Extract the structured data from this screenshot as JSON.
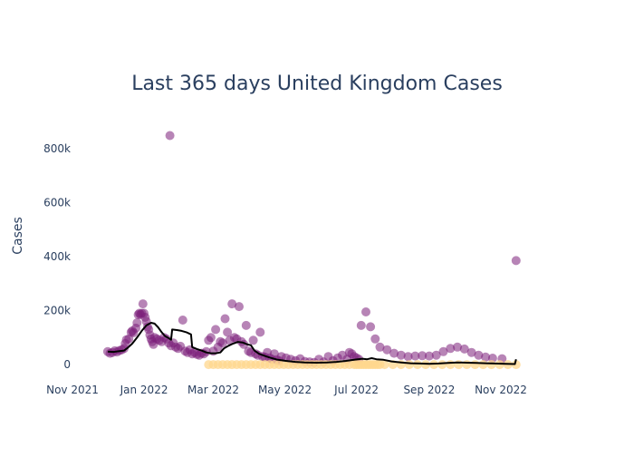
{
  "chart_data": {
    "type": "scatter",
    "title": "Last 365 days United Kingdom Cases",
    "xlabel": "",
    "ylabel": "Cases",
    "x_range": [
      "2021-11-01",
      "2022-12-15"
    ],
    "ylim": [
      -60000,
      880000
    ],
    "grid": false,
    "legend": "none",
    "x_ticks": [
      {
        "date": "2021-11-01",
        "label": "Nov 2021"
      },
      {
        "date": "2022-01-01",
        "label": "Jan 2022"
      },
      {
        "date": "2022-03-01",
        "label": "Mar 2022"
      },
      {
        "date": "2022-05-01",
        "label": "May 2022"
      },
      {
        "date": "2022-07-01",
        "label": "Jul 2022"
      },
      {
        "date": "2022-09-01",
        "label": "Sep 2022"
      },
      {
        "date": "2022-11-01",
        "label": "Nov 2022"
      }
    ],
    "y_ticks": [
      {
        "value": 0,
        "label": "0"
      },
      {
        "value": 200000,
        "label": "200k"
      },
      {
        "value": 400000,
        "label": "400k"
      },
      {
        "value": 600000,
        "label": "600k"
      },
      {
        "value": 800000,
        "label": "800k"
      }
    ],
    "series": [
      {
        "kind": "markers",
        "color": "#7b1f7a",
        "opacity": 0.55,
        "points": [
          [
            "2021-12-01",
            48000
          ],
          [
            "2021-12-03",
            42000
          ],
          [
            "2021-12-05",
            45000
          ],
          [
            "2021-12-07",
            51000
          ],
          [
            "2021-12-09",
            47000
          ],
          [
            "2021-12-11",
            52000
          ],
          [
            "2021-12-13",
            55000
          ],
          [
            "2021-12-15",
            60000
          ],
          [
            "2021-12-16",
            78000
          ],
          [
            "2021-12-17",
            92000
          ],
          [
            "2021-12-19",
            95000
          ],
          [
            "2021-12-21",
            120000
          ],
          [
            "2021-12-22",
            125000
          ],
          [
            "2021-12-23",
            118000
          ],
          [
            "2021-12-25",
            135000
          ],
          [
            "2021-12-26",
            155000
          ],
          [
            "2021-12-27",
            185000
          ],
          [
            "2021-12-28",
            190000
          ],
          [
            "2021-12-29",
            185000
          ],
          [
            "2021-12-30",
            190000
          ],
          [
            "2021-12-31",
            225000
          ],
          [
            "2022-01-01",
            190000
          ],
          [
            "2022-01-02",
            175000
          ],
          [
            "2022-01-03",
            160000
          ],
          [
            "2022-01-04",
            140000
          ],
          [
            "2022-01-05",
            130000
          ],
          [
            "2022-01-06",
            110000
          ],
          [
            "2022-01-07",
            95000
          ],
          [
            "2022-01-08",
            85000
          ],
          [
            "2022-01-09",
            75000
          ],
          [
            "2022-01-10",
            100000
          ],
          [
            "2022-01-12",
            95000
          ],
          [
            "2022-01-14",
            90000
          ],
          [
            "2022-01-16",
            85000
          ],
          [
            "2022-01-18",
            100000
          ],
          [
            "2022-01-20",
            95000
          ],
          [
            "2022-01-22",
            80000
          ],
          [
            "2022-01-24",
            70000
          ],
          [
            "2022-01-26",
            80000
          ],
          [
            "2022-01-28",
            65000
          ],
          [
            "2022-01-30",
            60000
          ],
          [
            "2022-01-23",
            848000
          ],
          [
            "2022-02-01",
            68000
          ],
          [
            "2022-02-03",
            165000
          ],
          [
            "2022-02-05",
            50000
          ],
          [
            "2022-02-07",
            45000
          ],
          [
            "2022-02-09",
            55000
          ],
          [
            "2022-02-11",
            40000
          ],
          [
            "2022-02-13",
            45000
          ],
          [
            "2022-02-15",
            38000
          ],
          [
            "2022-02-17",
            35000
          ],
          [
            "2022-02-19",
            42000
          ],
          [
            "2022-02-21",
            40000
          ],
          [
            "2022-02-23",
            48000
          ],
          [
            "2022-02-25",
            90000
          ],
          [
            "2022-02-27",
            100000
          ],
          [
            "2022-03-01",
            50000
          ],
          [
            "2022-03-03",
            130000
          ],
          [
            "2022-03-05",
            65000
          ],
          [
            "2022-03-07",
            85000
          ],
          [
            "2022-03-09",
            80000
          ],
          [
            "2022-03-11",
            170000
          ],
          [
            "2022-03-13",
            120000
          ],
          [
            "2022-03-15",
            90000
          ],
          [
            "2022-03-17",
            225000
          ],
          [
            "2022-03-19",
            100000
          ],
          [
            "2022-03-21",
            95000
          ],
          [
            "2022-03-23",
            215000
          ],
          [
            "2022-03-25",
            85000
          ],
          [
            "2022-03-27",
            75000
          ],
          [
            "2022-03-29",
            145000
          ],
          [
            "2022-03-31",
            50000
          ],
          [
            "2022-04-02",
            45000
          ],
          [
            "2022-04-04",
            90000
          ],
          [
            "2022-04-06",
            40000
          ],
          [
            "2022-04-08",
            35000
          ],
          [
            "2022-04-10",
            120000
          ],
          [
            "2022-04-12",
            30000
          ],
          [
            "2022-04-14",
            28000
          ],
          [
            "2022-04-16",
            45000
          ],
          [
            "2022-04-18",
            25000
          ],
          [
            "2022-04-20",
            20000
          ],
          [
            "2022-04-22",
            40000
          ],
          [
            "2022-04-24",
            18000
          ],
          [
            "2022-04-26",
            15000
          ],
          [
            "2022-04-28",
            30000
          ],
          [
            "2022-05-02",
            25000
          ],
          [
            "2022-05-06",
            20000
          ],
          [
            "2022-05-10",
            15000
          ],
          [
            "2022-05-14",
            22000
          ],
          [
            "2022-05-18",
            12000
          ],
          [
            "2022-05-22",
            10000
          ],
          [
            "2022-05-26",
            8000
          ],
          [
            "2022-05-30",
            20000
          ],
          [
            "2022-06-03",
            10000
          ],
          [
            "2022-06-07",
            30000
          ],
          [
            "2022-06-11",
            15000
          ],
          [
            "2022-06-15",
            25000
          ],
          [
            "2022-06-19",
            35000
          ],
          [
            "2022-06-23",
            20000
          ],
          [
            "2022-06-25",
            45000
          ],
          [
            "2022-06-27",
            40000
          ],
          [
            "2022-06-29",
            30000
          ],
          [
            "2022-07-01",
            25000
          ],
          [
            "2022-07-03",
            20000
          ],
          [
            "2022-07-05",
            145000
          ],
          [
            "2022-07-09",
            195000
          ],
          [
            "2022-07-13",
            140000
          ],
          [
            "2022-07-17",
            95000
          ],
          [
            "2022-07-21",
            65000
          ],
          [
            "2022-07-27",
            55000
          ],
          [
            "2022-08-02",
            42000
          ],
          [
            "2022-08-08",
            35000
          ],
          [
            "2022-08-14",
            30000
          ],
          [
            "2022-08-20",
            32000
          ],
          [
            "2022-08-26",
            33000
          ],
          [
            "2022-09-01",
            32000
          ],
          [
            "2022-09-07",
            35000
          ],
          [
            "2022-09-13",
            48000
          ],
          [
            "2022-09-19",
            60000
          ],
          [
            "2022-09-25",
            65000
          ],
          [
            "2022-10-01",
            58000
          ],
          [
            "2022-10-07",
            45000
          ],
          [
            "2022-10-13",
            35000
          ],
          [
            "2022-10-19",
            28000
          ],
          [
            "2022-10-25",
            24000
          ],
          [
            "2022-11-02",
            22000
          ],
          [
            "2022-11-14",
            385000
          ]
        ]
      },
      {
        "kind": "markers",
        "color": "#ffd78e",
        "opacity": 0.75,
        "points": [
          [
            "2022-02-25",
            0
          ],
          [
            "2022-03-01",
            0
          ],
          [
            "2022-03-05",
            0
          ],
          [
            "2022-03-09",
            0
          ],
          [
            "2022-03-13",
            0
          ],
          [
            "2022-03-17",
            0
          ],
          [
            "2022-03-21",
            0
          ],
          [
            "2022-03-25",
            0
          ],
          [
            "2022-03-29",
            0
          ],
          [
            "2022-04-02",
            0
          ],
          [
            "2022-04-06",
            0
          ],
          [
            "2022-04-10",
            0
          ],
          [
            "2022-04-14",
            0
          ],
          [
            "2022-04-18",
            0
          ],
          [
            "2022-04-22",
            0
          ],
          [
            "2022-04-26",
            0
          ],
          [
            "2022-04-30",
            0
          ],
          [
            "2022-05-04",
            0
          ],
          [
            "2022-05-08",
            0
          ],
          [
            "2022-05-12",
            0
          ],
          [
            "2022-05-16",
            0
          ],
          [
            "2022-05-20",
            0
          ],
          [
            "2022-05-24",
            0
          ],
          [
            "2022-05-28",
            0
          ],
          [
            "2022-06-01",
            0
          ],
          [
            "2022-06-05",
            0
          ],
          [
            "2022-06-09",
            0
          ],
          [
            "2022-06-13",
            0
          ],
          [
            "2022-06-17",
            0
          ],
          [
            "2022-06-21",
            0
          ],
          [
            "2022-06-25",
            0
          ],
          [
            "2022-06-29",
            0
          ],
          [
            "2022-07-01",
            0
          ],
          [
            "2022-07-03",
            0
          ],
          [
            "2022-07-05",
            0
          ],
          [
            "2022-07-07",
            0
          ],
          [
            "2022-07-09",
            0
          ],
          [
            "2022-07-11",
            0
          ],
          [
            "2022-07-13",
            0
          ],
          [
            "2022-07-15",
            0
          ],
          [
            "2022-07-17",
            0
          ],
          [
            "2022-07-19",
            0
          ],
          [
            "2022-07-21",
            0
          ],
          [
            "2022-07-25",
            0
          ],
          [
            "2022-08-01",
            0
          ],
          [
            "2022-08-08",
            0
          ],
          [
            "2022-08-15",
            0
          ],
          [
            "2022-08-22",
            0
          ],
          [
            "2022-08-29",
            0
          ],
          [
            "2022-09-05",
            0
          ],
          [
            "2022-09-12",
            0
          ],
          [
            "2022-09-19",
            0
          ],
          [
            "2022-09-26",
            0
          ],
          [
            "2022-10-03",
            0
          ],
          [
            "2022-10-10",
            0
          ],
          [
            "2022-10-17",
            0
          ],
          [
            "2022-10-24",
            0
          ],
          [
            "2022-10-31",
            0
          ],
          [
            "2022-11-07",
            0
          ],
          [
            "2022-11-14",
            0
          ]
        ]
      },
      {
        "kind": "line",
        "color": "#000000",
        "points": [
          [
            "2021-12-01",
            48000
          ],
          [
            "2021-12-06",
            47000
          ],
          [
            "2021-12-11",
            50000
          ],
          [
            "2021-12-15",
            52000
          ],
          [
            "2021-12-18",
            62000
          ],
          [
            "2021-12-22",
            78000
          ],
          [
            "2021-12-26",
            100000
          ],
          [
            "2021-12-30",
            125000
          ],
          [
            "2022-01-03",
            145000
          ],
          [
            "2022-01-07",
            155000
          ],
          [
            "2022-01-10",
            152000
          ],
          [
            "2022-01-13",
            138000
          ],
          [
            "2022-01-16",
            120000
          ],
          [
            "2022-01-19",
            105000
          ],
          [
            "2022-01-22",
            98000
          ],
          [
            "2022-01-24",
            92000
          ],
          [
            "2022-01-25",
            130000
          ],
          [
            "2022-01-29",
            128000
          ],
          [
            "2022-02-02",
            125000
          ],
          [
            "2022-02-06",
            120000
          ],
          [
            "2022-02-10",
            112000
          ],
          [
            "2022-02-11",
            65000
          ],
          [
            "2022-02-15",
            58000
          ],
          [
            "2022-02-19",
            52000
          ],
          [
            "2022-02-23",
            45000
          ],
          [
            "2022-02-27",
            42000
          ],
          [
            "2022-03-03",
            42000
          ],
          [
            "2022-03-07",
            45000
          ],
          [
            "2022-03-10",
            60000
          ],
          [
            "2022-03-14",
            70000
          ],
          [
            "2022-03-18",
            78000
          ],
          [
            "2022-03-22",
            84000
          ],
          [
            "2022-03-26",
            82000
          ],
          [
            "2022-03-30",
            75000
          ],
          [
            "2022-04-02",
            72000
          ],
          [
            "2022-04-05",
            52000
          ],
          [
            "2022-04-09",
            40000
          ],
          [
            "2022-04-14",
            32000
          ],
          [
            "2022-04-19",
            25000
          ],
          [
            "2022-04-25",
            18000
          ],
          [
            "2022-05-02",
            14000
          ],
          [
            "2022-05-10",
            10000
          ],
          [
            "2022-05-18",
            8000
          ],
          [
            "2022-05-28",
            7000
          ],
          [
            "2022-06-06",
            8000
          ],
          [
            "2022-06-14",
            10000
          ],
          [
            "2022-06-22",
            14000
          ],
          [
            "2022-06-29",
            18000
          ],
          [
            "2022-07-06",
            22000
          ],
          [
            "2022-07-10",
            20000
          ],
          [
            "2022-07-14",
            24000
          ],
          [
            "2022-07-18",
            20000
          ],
          [
            "2022-07-24",
            18000
          ],
          [
            "2022-07-31",
            12000
          ],
          [
            "2022-08-08",
            8000
          ],
          [
            "2022-08-16",
            5000
          ],
          [
            "2022-08-24",
            4000
          ],
          [
            "2022-09-01",
            3000
          ],
          [
            "2022-09-09",
            4000
          ],
          [
            "2022-09-17",
            6000
          ],
          [
            "2022-09-25",
            8000
          ],
          [
            "2022-10-03",
            7000
          ],
          [
            "2022-10-11",
            6000
          ],
          [
            "2022-10-19",
            5000
          ],
          [
            "2022-10-27",
            4000
          ],
          [
            "2022-11-05",
            3000
          ],
          [
            "2022-11-13",
            2000
          ],
          [
            "2022-11-14",
            20000
          ]
        ]
      }
    ]
  }
}
